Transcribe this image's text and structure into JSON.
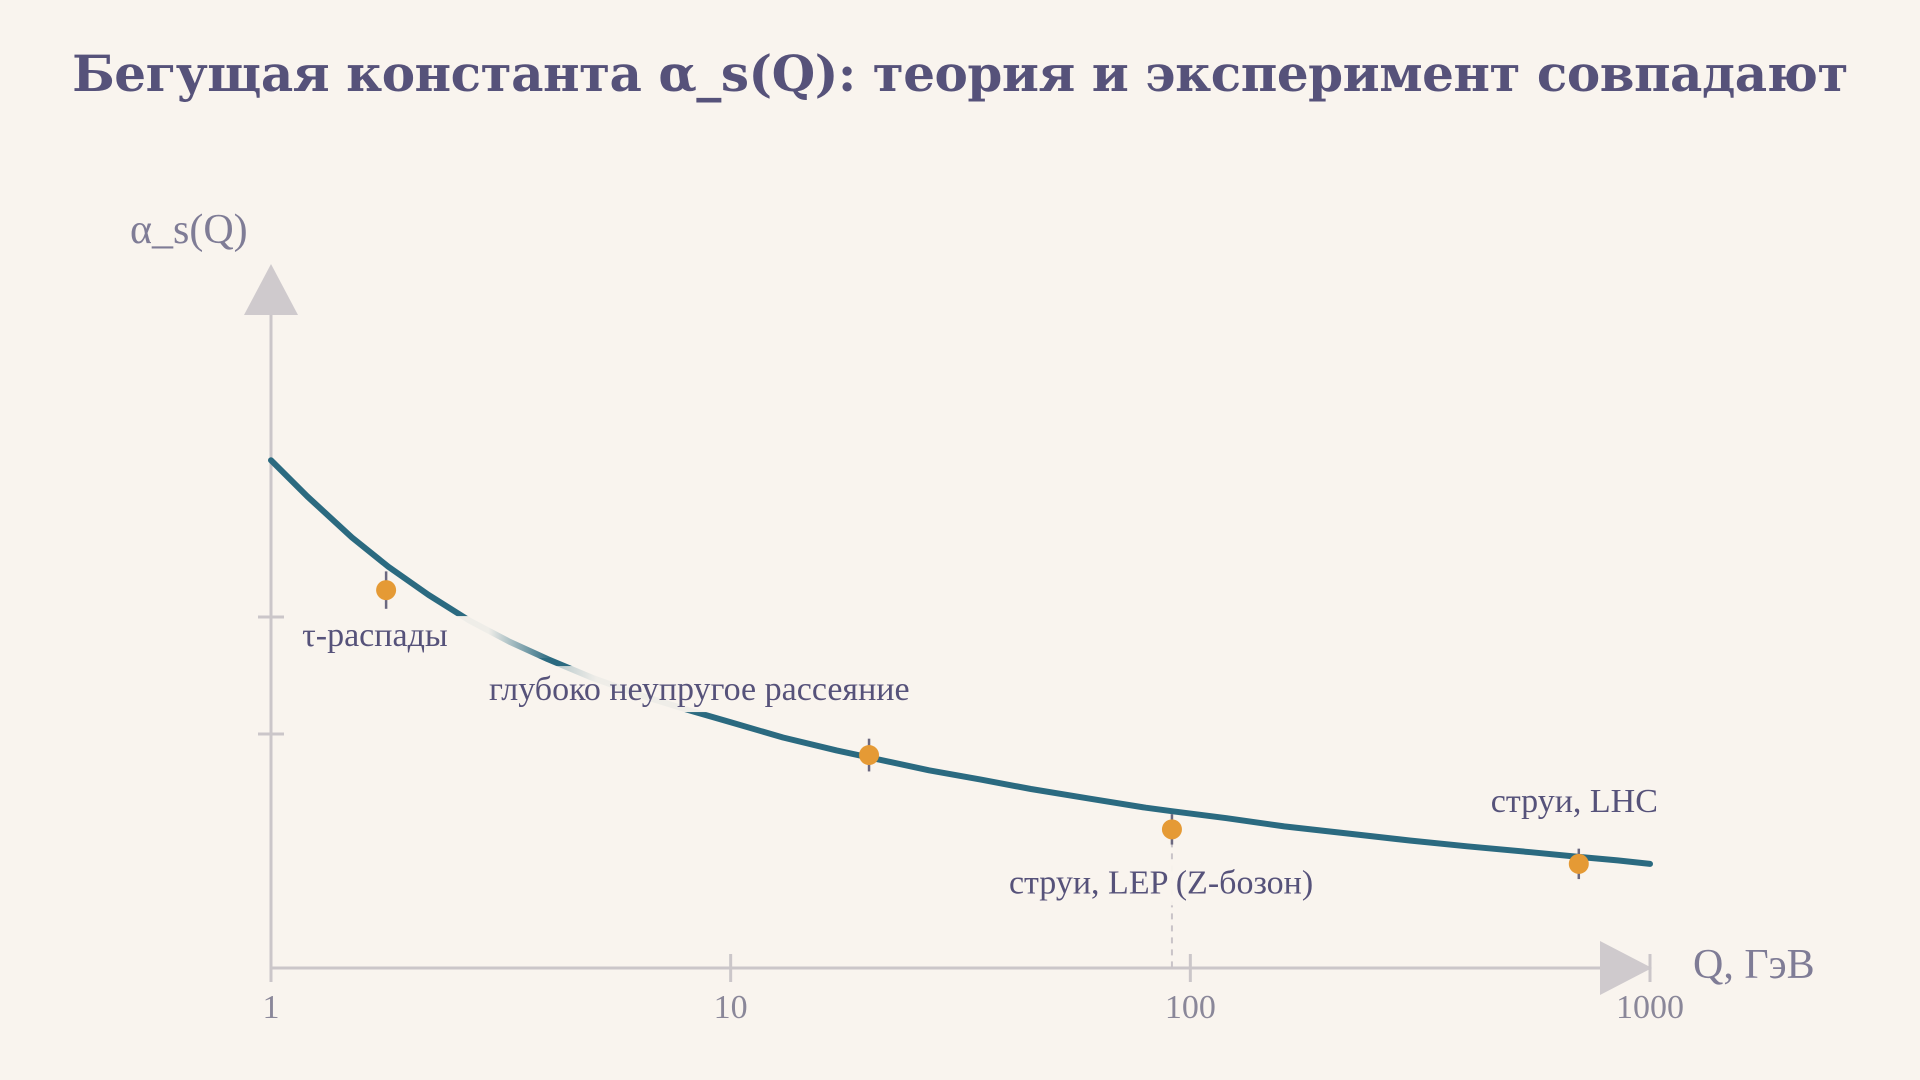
{
  "title": "Бегущая константа α_s(Q): теория и эксперимент совпадают",
  "colors": {
    "background": "#f9f4ee",
    "title": "#56527a",
    "curve": "#2b6a80",
    "points": "#e59a35",
    "axis": "#cbc6c9",
    "labels": "#56527a"
  },
  "chart_data": {
    "type": "line",
    "xlabel": "Q,  ГэВ",
    "ylabel": "α_s(Q)",
    "x_scale": "log",
    "xlim": [
      1,
      1000
    ],
    "ylim": [
      0,
      0.5
    ],
    "x_ticks": [
      {
        "value": 1,
        "label": "1"
      },
      {
        "value": 10,
        "label": "10"
      },
      {
        "value": 100,
        "label": "100"
      },
      {
        "value": 1000,
        "label": "1000"
      }
    ],
    "y_ticks": [
      0.2,
      0.3
    ],
    "grid": false,
    "series": [
      {
        "kind": "curve",
        "x": [
          1,
          1.2,
          1.5,
          1.8,
          2.2,
          2.7,
          3.3,
          4,
          5,
          6.5,
          8,
          10,
          13,
          17,
          20,
          27,
          35,
          45,
          60,
          80,
          91.2,
          120,
          160,
          220,
          300,
          400,
          550,
          700,
          850,
          1000
        ],
        "y": [
          0.434,
          0.403,
          0.368,
          0.343,
          0.319,
          0.297,
          0.279,
          0.264,
          0.248,
          0.232,
          0.221,
          0.21,
          0.197,
          0.186,
          0.18,
          0.169,
          0.161,
          0.153,
          0.145,
          0.137,
          0.134,
          0.128,
          0.121,
          0.115,
          0.109,
          0.104,
          0.099,
          0.095,
          0.092,
          0.089
        ]
      },
      {
        "kind": "measurements",
        "points": [
          {
            "x": 1.78,
            "y": 0.323,
            "err": 0.016,
            "label": "τ-распады"
          },
          {
            "x": 20,
            "y": 0.182,
            "err": 0.014,
            "label": "глубоко неупругое рассеяние"
          },
          {
            "x": 91.2,
            "y": 0.1185,
            "err": 0.013,
            "label": "струи, LEP (Z-бозон)"
          },
          {
            "x": 700,
            "y": 0.089,
            "err": 0.013,
            "label": "струи, LHC"
          }
        ]
      }
    ]
  }
}
